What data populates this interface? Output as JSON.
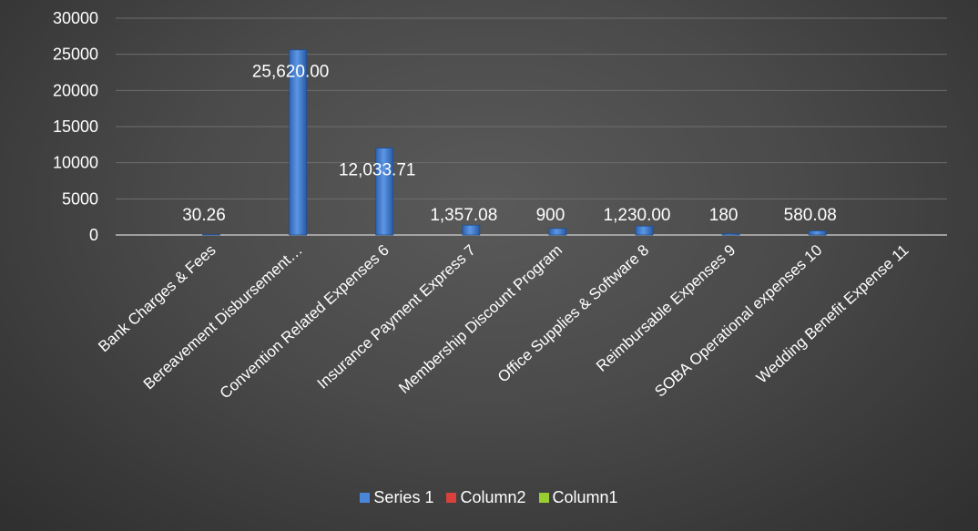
{
  "chart_data": {
    "type": "bar",
    "title": "",
    "xlabel": "",
    "ylabel": "",
    "ylim": [
      0,
      30000
    ],
    "yticks": [
      0,
      5000,
      10000,
      15000,
      20000,
      25000,
      30000
    ],
    "grid": true,
    "legend_position": "bottom",
    "categories": [
      "Bank Charges & Fees",
      "Bereavement Disbursement…",
      "Convention Related Expenses 6",
      "Insurance Payment Express 7",
      "Membership Discount Program",
      "Office Supplies & Software 8",
      "Reimbursable Expenses 9",
      "SOBA Operational expenses 10",
      "Wedding Benefit Expense 11"
    ],
    "series": [
      {
        "name": "Series 1",
        "color": "#4a86d8",
        "values": [
          30.26,
          25620.0,
          12033.71,
          1357.08,
          900,
          1230.0,
          180,
          580.08,
          null
        ],
        "data_labels": [
          "30.26",
          "25,620.00",
          "12,033.71",
          "1,357.08",
          "900",
          "1,230.00",
          "180",
          "580.08",
          ""
        ]
      },
      {
        "name": "Column2",
        "color": "#d9413c",
        "values": [
          null,
          null,
          null,
          null,
          null,
          null,
          null,
          null,
          null
        ]
      },
      {
        "name": "Column1",
        "color": "#9acd32",
        "values": [
          null,
          null,
          null,
          null,
          null,
          null,
          null,
          null,
          null
        ]
      }
    ]
  }
}
